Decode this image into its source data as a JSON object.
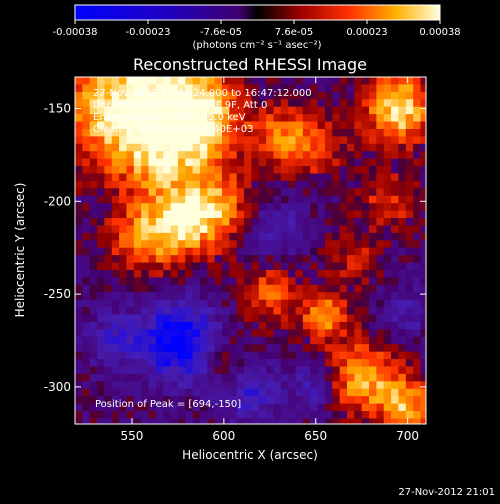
{
  "chart_data": {
    "type": "heatmap",
    "title": "Reconstructed RHESSI Image",
    "xlabel": "Heliocentric X (arcsec)",
    "ylabel": "Heliocentric Y (arcsec)",
    "xlim": [
      519,
      710
    ],
    "ylim": [
      -320,
      -133
    ],
    "xticks": [
      550,
      600,
      650,
      700
    ],
    "yticks": [
      -150,
      -200,
      -250,
      -300
    ],
    "grid": false,
    "colorbar": {
      "location": "top",
      "ticks": [
        "-0.00038",
        "-0.00023",
        "-7.6e-05",
        "7.6e-05",
        "0.00023",
        "0.00038"
      ],
      "units_label": "(photons cm⁻² s⁻¹ asec⁻²)",
      "min": -0.00038,
      "max": 0.00038
    },
    "annotations": [
      "27-Nov-2012 16:44:24.000 to 16:47:12.000",
      "Detectors: 3F 5F 6F 7F 8F 9F, Att 0",
      "Energy Range: 12.0 - 25.0 keV",
      "Clean     Total counts: 3.40E+03"
    ],
    "peak_label": "Position of Peak = [694,-150]",
    "peak": [
      694,
      -150
    ],
    "footer_timestamp": "27-Nov-2012 21:01",
    "blobs": [
      {
        "x": 540,
        "y": -150,
        "r": 30,
        "a": 0.9
      },
      {
        "x": 575,
        "y": -140,
        "r": 25,
        "a": 0.75
      },
      {
        "x": 590,
        "y": -160,
        "r": 20,
        "a": 0.7
      },
      {
        "x": 565,
        "y": -175,
        "r": 22,
        "a": 0.6
      },
      {
        "x": 580,
        "y": -210,
        "r": 20,
        "a": 0.95
      },
      {
        "x": 555,
        "y": -220,
        "r": 18,
        "a": 0.6
      },
      {
        "x": 630,
        "y": -165,
        "r": 15,
        "a": 0.55
      },
      {
        "x": 650,
        "y": -170,
        "r": 16,
        "a": 0.5
      },
      {
        "x": 695,
        "y": -150,
        "r": 18,
        "a": 1.0
      },
      {
        "x": 690,
        "y": -200,
        "r": 15,
        "a": 0.45
      },
      {
        "x": 625,
        "y": -250,
        "r": 15,
        "a": 0.55
      },
      {
        "x": 655,
        "y": -262,
        "r": 12,
        "a": 0.75
      },
      {
        "x": 600,
        "y": -285,
        "r": 10,
        "a": 0.4
      },
      {
        "x": 675,
        "y": -295,
        "r": 18,
        "a": 0.85
      },
      {
        "x": 700,
        "y": -310,
        "r": 14,
        "a": 0.8
      },
      {
        "x": 600,
        "y": -200,
        "r": 16,
        "a": 0.45
      },
      {
        "x": 670,
        "y": -230,
        "r": 14,
        "a": 0.35
      },
      {
        "x": 575,
        "y": -275,
        "r": 20,
        "a": -1.0
      },
      {
        "x": 540,
        "y": -275,
        "r": 14,
        "a": -0.45
      },
      {
        "x": 615,
        "y": -305,
        "r": 16,
        "a": -0.5
      },
      {
        "x": 630,
        "y": -215,
        "r": 14,
        "a": -0.4
      },
      {
        "x": 650,
        "y": -300,
        "r": 12,
        "a": -0.45
      },
      {
        "x": 700,
        "y": -260,
        "r": 12,
        "a": -0.35
      }
    ]
  }
}
